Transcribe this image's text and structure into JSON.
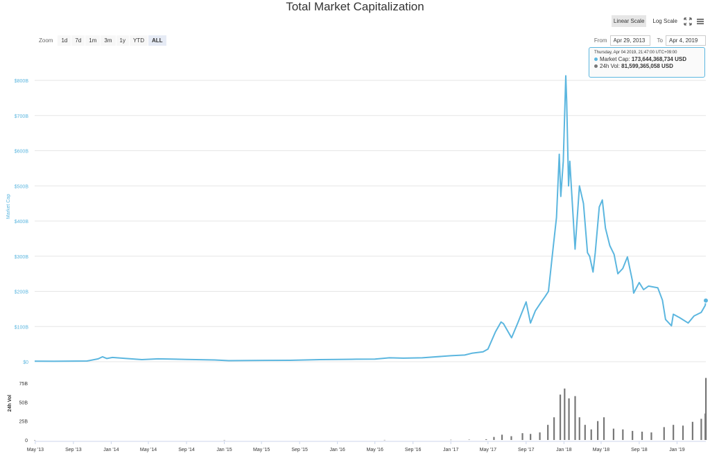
{
  "header": {
    "title": "Total Market Capitalization"
  },
  "scale": {
    "linear_label": "Linear Scale",
    "log_label": "Log Scale",
    "active": "linear"
  },
  "zoom": {
    "label": "Zoom",
    "buttons": [
      "1d",
      "7d",
      "1m",
      "3m",
      "1y",
      "YTD",
      "ALL"
    ],
    "active": "ALL"
  },
  "range": {
    "from_label": "From",
    "from_value": "Apr 29, 2013",
    "to_label": "To",
    "to_value": "Apr 4, 2019"
  },
  "tooltip": {
    "timestamp": "Thursday, Apr 04 2019, 21:47:00 UTC+09:00",
    "market_cap_label": "Market Cap:",
    "market_cap_value": "173,644,368,734 USD",
    "volume_label": "24h Vol:",
    "volume_value": "81,599,365,058 USD"
  },
  "icons": {
    "fullscreen": "fullscreen-icon",
    "menu": "hamburger-menu-icon"
  },
  "colors": {
    "market_cap": "#5bb6df",
    "volume": "#777777",
    "grid": "#e6e6e6",
    "axis_text": "#5bb6df"
  },
  "chart_data": [
    {
      "type": "line",
      "title": "Total Market Capitalization",
      "ylabel": "Market Cap",
      "ylim": [
        0,
        800
      ],
      "y_unit": "B USD",
      "y_ticks": [
        "$0",
        "$100B",
        "$200B",
        "$300B",
        "$400B",
        "$500B",
        "$600B",
        "$700B",
        "$800B"
      ],
      "x_ticks": [
        "May '13",
        "Sep '13",
        "Jan '14",
        "May '14",
        "Sep '14",
        "Jan '15",
        "May '15",
        "Sep '15",
        "Jan '16",
        "May '16",
        "Sep '16",
        "Jan '17",
        "May '17",
        "Sep '17",
        "Jan '18",
        "May '18",
        "Sep '18",
        "Jan '19"
      ],
      "x_range": [
        "2013-04-29",
        "2019-04-04"
      ],
      "grid": true,
      "series": [
        {
          "name": "Market Cap",
          "points": [
            [
              "2013-04-29",
              1.6
            ],
            [
              "2013-07-01",
              1.1
            ],
            [
              "2013-10-15",
              2.0
            ],
            [
              "2013-11-20",
              8.0
            ],
            [
              "2013-12-04",
              14.0
            ],
            [
              "2013-12-18",
              9.0
            ],
            [
              "2014-01-05",
              12.0
            ],
            [
              "2014-02-15",
              9.5
            ],
            [
              "2014-04-10",
              6.0
            ],
            [
              "2014-06-01",
              8.0
            ],
            [
              "2014-09-01",
              6.5
            ],
            [
              "2014-12-01",
              5.0
            ],
            [
              "2015-01-15",
              3.0
            ],
            [
              "2015-04-01",
              3.5
            ],
            [
              "2015-08-01",
              4.0
            ],
            [
              "2015-11-05",
              6.0
            ],
            [
              "2016-01-01",
              6.5
            ],
            [
              "2016-03-01",
              7.0
            ],
            [
              "2016-05-01",
              7.5
            ],
            [
              "2016-06-17",
              11.0
            ],
            [
              "2016-08-01",
              10.0
            ],
            [
              "2016-10-01",
              11.0
            ],
            [
              "2017-01-01",
              17.0
            ],
            [
              "2017-02-15",
              19.0
            ],
            [
              "2017-03-10",
              24.0
            ],
            [
              "2017-04-15",
              28.0
            ],
            [
              "2017-05-01",
              36.0
            ],
            [
              "2017-05-25",
              85.0
            ],
            [
              "2017-06-12",
              113.0
            ],
            [
              "2017-06-20",
              108.0
            ],
            [
              "2017-07-16",
              68.0
            ],
            [
              "2017-08-05",
              110.0
            ],
            [
              "2017-09-01",
              170.0
            ],
            [
              "2017-09-15",
              110.0
            ],
            [
              "2017-10-01",
              145.0
            ],
            [
              "2017-10-20",
              170.0
            ],
            [
              "2017-11-01",
              185.0
            ],
            [
              "2017-11-12",
              200.0
            ],
            [
              "2017-11-28",
              330.0
            ],
            [
              "2017-12-08",
              410.0
            ],
            [
              "2017-12-17",
              590.0
            ],
            [
              "2017-12-22",
              470.0
            ],
            [
              "2017-12-30",
              570.0
            ],
            [
              "2018-01-07",
              813.0
            ],
            [
              "2018-01-10",
              740.0
            ],
            [
              "2018-01-16",
              500.0
            ],
            [
              "2018-01-20",
              570.0
            ],
            [
              "2018-02-06",
              320.0
            ],
            [
              "2018-02-20",
              500.0
            ],
            [
              "2018-03-05",
              450.0
            ],
            [
              "2018-03-18",
              310.0
            ],
            [
              "2018-03-25",
              300.0
            ],
            [
              "2018-04-05",
              255.0
            ],
            [
              "2018-04-12",
              310.0
            ],
            [
              "2018-04-25",
              440.0
            ],
            [
              "2018-05-05",
              460.0
            ],
            [
              "2018-05-15",
              380.0
            ],
            [
              "2018-05-29",
              330.0
            ],
            [
              "2018-06-12",
              305.0
            ],
            [
              "2018-06-24",
              250.0
            ],
            [
              "2018-07-10",
              265.0
            ],
            [
              "2018-07-25",
              298.0
            ],
            [
              "2018-08-10",
              230.0
            ],
            [
              "2018-08-14",
              195.0
            ],
            [
              "2018-09-01",
              225.0
            ],
            [
              "2018-09-15",
              205.0
            ],
            [
              "2018-10-01",
              215.0
            ],
            [
              "2018-10-31",
              210.0
            ],
            [
              "2018-11-15",
              175.0
            ],
            [
              "2018-11-25",
              120.0
            ],
            [
              "2018-12-14",
              102.0
            ],
            [
              "2018-12-20",
              135.0
            ],
            [
              "2019-01-10",
              125.0
            ],
            [
              "2019-02-06",
              110.0
            ],
            [
              "2019-02-25",
              130.0
            ],
            [
              "2019-03-20",
              140.0
            ],
            [
              "2019-04-02",
              160.0
            ],
            [
              "2019-04-04",
              174.0
            ]
          ]
        }
      ]
    },
    {
      "type": "bar",
      "title": "",
      "ylabel": "24h Vol",
      "ylim": [
        0,
        87
      ],
      "y_unit": "B USD",
      "y_ticks": [
        "0",
        "25B",
        "50B",
        "75B"
      ],
      "x_range": [
        "2013-04-29",
        "2019-04-04"
      ],
      "series": [
        {
          "name": "24h Vol",
          "points": [
            [
              "2013-04-29",
              0.01
            ],
            [
              "2015-01-01",
              0.05
            ],
            [
              "2016-06-01",
              0.1
            ],
            [
              "2017-01-01",
              0.3
            ],
            [
              "2017-03-01",
              0.5
            ],
            [
              "2017-04-25",
              1.0
            ],
            [
              "2017-05-20",
              4.0
            ],
            [
              "2017-06-15",
              7.0
            ],
            [
              "2017-07-15",
              5.0
            ],
            [
              "2017-08-20",
              9.0
            ],
            [
              "2017-09-15",
              8.0
            ],
            [
              "2017-10-15",
              10.0
            ],
            [
              "2017-11-10",
              20.0
            ],
            [
              "2017-11-30",
              30.0
            ],
            [
              "2017-12-20",
              60.0
            ],
            [
              "2018-01-03",
              68.0
            ],
            [
              "2018-01-17",
              55.0
            ],
            [
              "2018-02-06",
              58.0
            ],
            [
              "2018-02-20",
              30.0
            ],
            [
              "2018-03-10",
              20.0
            ],
            [
              "2018-03-30",
              14.0
            ],
            [
              "2018-04-20",
              25.0
            ],
            [
              "2018-05-10",
              30.0
            ],
            [
              "2018-06-10",
              15.0
            ],
            [
              "2018-07-10",
              14.0
            ],
            [
              "2018-08-10",
              12.0
            ],
            [
              "2018-09-10",
              11.0
            ],
            [
              "2018-10-10",
              10.0
            ],
            [
              "2018-11-20",
              17.0
            ],
            [
              "2018-12-20",
              20.0
            ],
            [
              "2019-01-20",
              19.0
            ],
            [
              "2019-02-20",
              24.0
            ],
            [
              "2019-03-20",
              28.0
            ],
            [
              "2019-04-02",
              35.0
            ],
            [
              "2019-04-04",
              82.0
            ]
          ]
        }
      ]
    }
  ]
}
